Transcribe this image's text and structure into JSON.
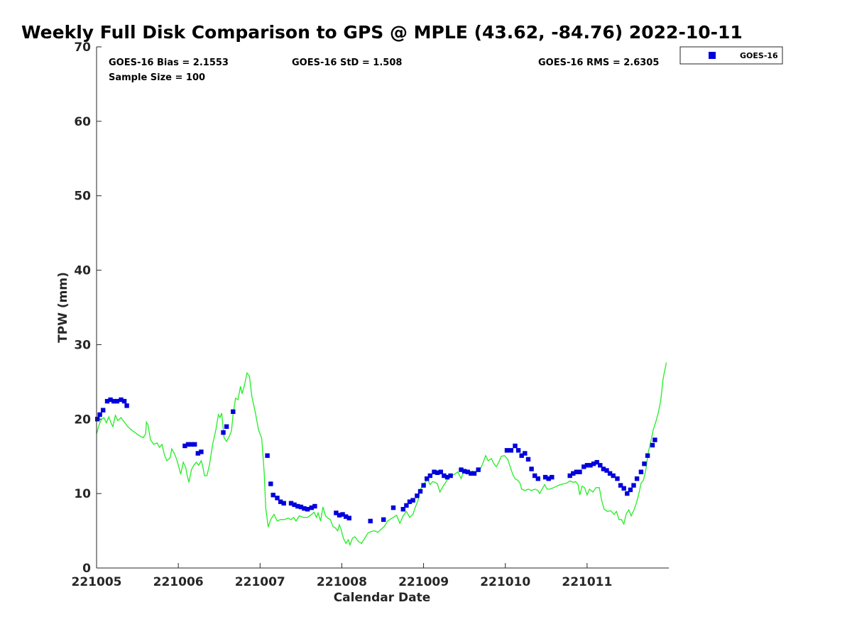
{
  "chart_data": {
    "type": "scatter",
    "title": "Weekly Full Disk Comparison to GPS @ MPLE (43.62, -84.76) 2022-10-11",
    "xlabel": "Calendar Date",
    "ylabel": "TPW (mm)",
    "xlim": [
      0,
      7
    ],
    "ylim": [
      0,
      70
    ],
    "x_tick_labels": [
      "221005",
      "221006",
      "221007",
      "221008",
      "221009",
      "221010",
      "221011"
    ],
    "y_ticks": [
      0,
      10,
      20,
      30,
      40,
      50,
      60,
      70
    ],
    "stats": {
      "bias": "GOES-16 Bias = 2.1553",
      "std": "GOES-16 StD = 1.508",
      "rms": "GOES-16 RMS = 2.6305",
      "sample": "Sample Size = 100"
    },
    "legend": {
      "label": "GOES-16",
      "position": "top-right-outside"
    },
    "colors": {
      "goes": "#0000dd",
      "gps": "#22ee22",
      "axis": "#262626"
    },
    "series": [
      {
        "name": "GOES-16",
        "marker": "square",
        "points": [
          [
            0.01,
            20.0
          ],
          [
            0.04,
            20.6
          ],
          [
            0.08,
            21.2
          ],
          [
            0.13,
            22.4
          ],
          [
            0.17,
            22.6
          ],
          [
            0.21,
            22.4
          ],
          [
            0.25,
            22.4
          ],
          [
            0.3,
            22.6
          ],
          [
            0.34,
            22.4
          ],
          [
            0.37,
            21.8
          ],
          [
            1.08,
            16.4
          ],
          [
            1.12,
            16.6
          ],
          [
            1.16,
            16.6
          ],
          [
            1.2,
            16.6
          ],
          [
            1.24,
            15.4
          ],
          [
            1.28,
            15.6
          ],
          [
            1.55,
            18.2
          ],
          [
            1.59,
            19.0
          ],
          [
            1.67,
            21.0
          ],
          [
            2.09,
            15.1
          ],
          [
            2.13,
            11.3
          ],
          [
            2.16,
            9.8
          ],
          [
            2.21,
            9.4
          ],
          [
            2.25,
            8.9
          ],
          [
            2.29,
            8.7
          ],
          [
            2.38,
            8.7
          ],
          [
            2.42,
            8.5
          ],
          [
            2.46,
            8.3
          ],
          [
            2.5,
            8.2
          ],
          [
            2.54,
            8.0
          ],
          [
            2.58,
            7.9
          ],
          [
            2.63,
            8.1
          ],
          [
            2.67,
            8.3
          ],
          [
            2.93,
            7.4
          ],
          [
            2.97,
            7.1
          ],
          [
            3.01,
            7.2
          ],
          [
            3.05,
            6.9
          ],
          [
            3.09,
            6.7
          ],
          [
            3.35,
            6.3
          ],
          [
            3.51,
            6.5
          ],
          [
            3.63,
            8.1
          ],
          [
            3.75,
            7.9
          ],
          [
            3.79,
            8.4
          ],
          [
            3.83,
            8.9
          ],
          [
            3.87,
            9.1
          ],
          [
            3.92,
            9.7
          ],
          [
            3.96,
            10.3
          ],
          [
            4.0,
            11.1
          ],
          [
            4.04,
            12.0
          ],
          [
            4.08,
            12.4
          ],
          [
            4.13,
            12.9
          ],
          [
            4.17,
            12.8
          ],
          [
            4.21,
            12.9
          ],
          [
            4.25,
            12.4
          ],
          [
            4.29,
            12.2
          ],
          [
            4.33,
            12.4
          ],
          [
            4.46,
            13.2
          ],
          [
            4.5,
            13.0
          ],
          [
            4.54,
            12.9
          ],
          [
            4.58,
            12.7
          ],
          [
            4.62,
            12.7
          ],
          [
            4.67,
            13.2
          ],
          [
            5.02,
            15.8
          ],
          [
            5.07,
            15.8
          ],
          [
            5.12,
            16.4
          ],
          [
            5.16,
            15.8
          ],
          [
            5.2,
            15.1
          ],
          [
            5.24,
            15.4
          ],
          [
            5.28,
            14.6
          ],
          [
            5.32,
            13.3
          ],
          [
            5.36,
            12.4
          ],
          [
            5.4,
            12.0
          ],
          [
            5.49,
            12.2
          ],
          [
            5.53,
            12.0
          ],
          [
            5.57,
            12.2
          ],
          [
            5.79,
            12.4
          ],
          [
            5.83,
            12.7
          ],
          [
            5.87,
            12.9
          ],
          [
            5.91,
            12.9
          ],
          [
            5.96,
            13.6
          ],
          [
            6.0,
            13.8
          ],
          [
            6.04,
            13.8
          ],
          [
            6.08,
            14.0
          ],
          [
            6.12,
            14.2
          ],
          [
            6.16,
            13.8
          ],
          [
            6.2,
            13.3
          ],
          [
            6.24,
            13.1
          ],
          [
            6.28,
            12.7
          ],
          [
            6.32,
            12.4
          ],
          [
            6.37,
            12.0
          ],
          [
            6.41,
            11.1
          ],
          [
            6.45,
            10.7
          ],
          [
            6.49,
            10.0
          ],
          [
            6.53,
            10.5
          ],
          [
            6.57,
            11.1
          ],
          [
            6.61,
            12.0
          ],
          [
            6.66,
            12.9
          ],
          [
            6.7,
            14.0
          ],
          [
            6.74,
            15.1
          ],
          [
            6.8,
            16.5
          ],
          [
            6.83,
            17.2
          ]
        ]
      },
      {
        "name": "GPS",
        "marker": "line",
        "points": [
          [
            0.0,
            18.0
          ],
          [
            0.03,
            19.2
          ],
          [
            0.06,
            20.0
          ],
          [
            0.09,
            20.2
          ],
          [
            0.12,
            19.5
          ],
          [
            0.15,
            20.3
          ],
          [
            0.18,
            19.4
          ],
          [
            0.2,
            19.0
          ],
          [
            0.23,
            20.5
          ],
          [
            0.26,
            19.8
          ],
          [
            0.3,
            20.2
          ],
          [
            0.34,
            19.6
          ],
          [
            0.38,
            19.0
          ],
          [
            0.42,
            18.6
          ],
          [
            0.47,
            18.2
          ],
          [
            0.52,
            17.8
          ],
          [
            0.57,
            17.5
          ],
          [
            0.6,
            18.0
          ],
          [
            0.61,
            19.6
          ],
          [
            0.63,
            19.2
          ],
          [
            0.66,
            17.2
          ],
          [
            0.7,
            16.6
          ],
          [
            0.74,
            16.8
          ],
          [
            0.77,
            16.2
          ],
          [
            0.8,
            16.6
          ],
          [
            0.83,
            15.2
          ],
          [
            0.86,
            14.4
          ],
          [
            0.9,
            14.8
          ],
          [
            0.92,
            16.0
          ],
          [
            0.95,
            15.4
          ],
          [
            0.98,
            14.6
          ],
          [
            1.01,
            13.4
          ],
          [
            1.03,
            12.6
          ],
          [
            1.06,
            14.2
          ],
          [
            1.09,
            13.5
          ],
          [
            1.11,
            12.4
          ],
          [
            1.13,
            11.5
          ],
          [
            1.16,
            13.2
          ],
          [
            1.19,
            13.8
          ],
          [
            1.22,
            14.2
          ],
          [
            1.25,
            13.8
          ],
          [
            1.28,
            14.4
          ],
          [
            1.3,
            13.6
          ],
          [
            1.32,
            12.4
          ],
          [
            1.35,
            12.4
          ],
          [
            1.38,
            13.8
          ],
          [
            1.42,
            16.6
          ],
          [
            1.46,
            18.6
          ],
          [
            1.49,
            20.6
          ],
          [
            1.51,
            20.2
          ],
          [
            1.53,
            20.8
          ],
          [
            1.56,
            17.5
          ],
          [
            1.59,
            17.0
          ],
          [
            1.62,
            17.6
          ],
          [
            1.65,
            18.4
          ],
          [
            1.67,
            20.6
          ],
          [
            1.7,
            22.8
          ],
          [
            1.73,
            22.6
          ],
          [
            1.76,
            24.4
          ],
          [
            1.78,
            23.4
          ],
          [
            1.81,
            24.6
          ],
          [
            1.84,
            26.2
          ],
          [
            1.87,
            25.8
          ],
          [
            1.9,
            23.0
          ],
          [
            1.94,
            21.0
          ],
          [
            1.98,
            18.6
          ],
          [
            2.02,
            17.4
          ],
          [
            2.05,
            13.0
          ],
          [
            2.07,
            8.0
          ],
          [
            2.1,
            5.5
          ],
          [
            2.13,
            6.5
          ],
          [
            2.17,
            7.2
          ],
          [
            2.21,
            6.3
          ],
          [
            2.25,
            6.5
          ],
          [
            2.3,
            6.5
          ],
          [
            2.34,
            6.7
          ],
          [
            2.38,
            6.5
          ],
          [
            2.41,
            6.8
          ],
          [
            2.44,
            6.3
          ],
          [
            2.48,
            7.0
          ],
          [
            2.53,
            6.8
          ],
          [
            2.58,
            6.8
          ],
          [
            2.62,
            7.1
          ],
          [
            2.66,
            7.5
          ],
          [
            2.69,
            6.8
          ],
          [
            2.71,
            7.4
          ],
          [
            2.74,
            6.3
          ],
          [
            2.77,
            8.2
          ],
          [
            2.8,
            7.0
          ],
          [
            2.83,
            6.7
          ],
          [
            2.86,
            6.5
          ],
          [
            2.89,
            5.6
          ],
          [
            2.92,
            5.4
          ],
          [
            2.95,
            5.0
          ],
          [
            2.97,
            5.8
          ],
          [
            2.99,
            5.2
          ],
          [
            3.02,
            4.0
          ],
          [
            3.05,
            3.3
          ],
          [
            3.08,
            3.8
          ],
          [
            3.1,
            3.1
          ],
          [
            3.13,
            4.0
          ],
          [
            3.16,
            4.2
          ],
          [
            3.2,
            3.6
          ],
          [
            3.24,
            3.3
          ],
          [
            3.28,
            4.0
          ],
          [
            3.32,
            4.7
          ],
          [
            3.36,
            4.9
          ],
          [
            3.4,
            5.0
          ],
          [
            3.44,
            4.8
          ],
          [
            3.48,
            5.2
          ],
          [
            3.52,
            5.6
          ],
          [
            3.56,
            6.3
          ],
          [
            3.6,
            6.6
          ],
          [
            3.63,
            6.8
          ],
          [
            3.67,
            7.1
          ],
          [
            3.71,
            6.0
          ],
          [
            3.75,
            7.0
          ],
          [
            3.79,
            7.6
          ],
          [
            3.83,
            6.8
          ],
          [
            3.87,
            7.2
          ],
          [
            3.9,
            8.2
          ],
          [
            3.93,
            9.0
          ],
          [
            3.96,
            10.5
          ],
          [
            3.99,
            11.2
          ],
          [
            4.02,
            11.5
          ],
          [
            4.05,
            11.9
          ],
          [
            4.08,
            11.2
          ],
          [
            4.11,
            11.6
          ],
          [
            4.14,
            11.5
          ],
          [
            4.17,
            11.3
          ],
          [
            4.2,
            10.2
          ],
          [
            4.24,
            11.0
          ],
          [
            4.27,
            11.5
          ],
          [
            4.3,
            12.0
          ],
          [
            4.34,
            12.4
          ],
          [
            4.38,
            12.6
          ],
          [
            4.42,
            12.9
          ],
          [
            4.46,
            12.0
          ],
          [
            4.49,
            13.0
          ],
          [
            4.53,
            12.9
          ],
          [
            4.57,
            12.6
          ],
          [
            4.6,
            13.0
          ],
          [
            4.63,
            12.5
          ],
          [
            4.67,
            13.4
          ],
          [
            4.7,
            13.4
          ],
          [
            4.73,
            14.2
          ],
          [
            4.76,
            15.1
          ],
          [
            4.79,
            14.4
          ],
          [
            4.83,
            14.7
          ],
          [
            4.86,
            14.0
          ],
          [
            4.89,
            13.6
          ],
          [
            4.92,
            14.2
          ],
          [
            4.95,
            15.0
          ],
          [
            4.99,
            15.1
          ],
          [
            5.03,
            14.6
          ],
          [
            5.06,
            13.6
          ],
          [
            5.09,
            12.6
          ],
          [
            5.12,
            12.0
          ],
          [
            5.15,
            11.8
          ],
          [
            5.18,
            11.4
          ],
          [
            5.2,
            10.6
          ],
          [
            5.24,
            10.4
          ],
          [
            5.28,
            10.6
          ],
          [
            5.32,
            10.4
          ],
          [
            5.36,
            10.6
          ],
          [
            5.4,
            10.4
          ],
          [
            5.42,
            10.0
          ],
          [
            5.45,
            10.6
          ],
          [
            5.48,
            11.2
          ],
          [
            5.51,
            10.6
          ],
          [
            5.55,
            10.6
          ],
          [
            5.59,
            10.8
          ],
          [
            5.63,
            11.0
          ],
          [
            5.67,
            11.2
          ],
          [
            5.71,
            11.3
          ],
          [
            5.75,
            11.4
          ],
          [
            5.79,
            11.7
          ],
          [
            5.83,
            11.5
          ],
          [
            5.86,
            11.6
          ],
          [
            5.89,
            11.2
          ],
          [
            5.91,
            9.8
          ],
          [
            5.94,
            11.0
          ],
          [
            5.97,
            10.8
          ],
          [
            6.0,
            9.8
          ],
          [
            6.03,
            10.6
          ],
          [
            6.07,
            10.2
          ],
          [
            6.11,
            10.8
          ],
          [
            6.15,
            10.8
          ],
          [
            6.18,
            9.0
          ],
          [
            6.21,
            7.9
          ],
          [
            6.25,
            7.6
          ],
          [
            6.29,
            7.7
          ],
          [
            6.33,
            7.2
          ],
          [
            6.36,
            7.6
          ],
          [
            6.39,
            6.5
          ],
          [
            6.42,
            6.5
          ],
          [
            6.45,
            5.9
          ],
          [
            6.48,
            7.3
          ],
          [
            6.51,
            7.8
          ],
          [
            6.54,
            7.0
          ],
          [
            6.57,
            7.7
          ],
          [
            6.6,
            8.6
          ],
          [
            6.63,
            9.8
          ],
          [
            6.66,
            11.4
          ],
          [
            6.69,
            11.8
          ],
          [
            6.72,
            13.3
          ],
          [
            6.75,
            15.6
          ],
          [
            6.78,
            17.0
          ],
          [
            6.81,
            18.6
          ],
          [
            6.84,
            19.6
          ],
          [
            6.87,
            20.8
          ],
          [
            6.9,
            22.4
          ],
          [
            6.93,
            25.4
          ],
          [
            6.97,
            27.6
          ]
        ]
      }
    ]
  }
}
